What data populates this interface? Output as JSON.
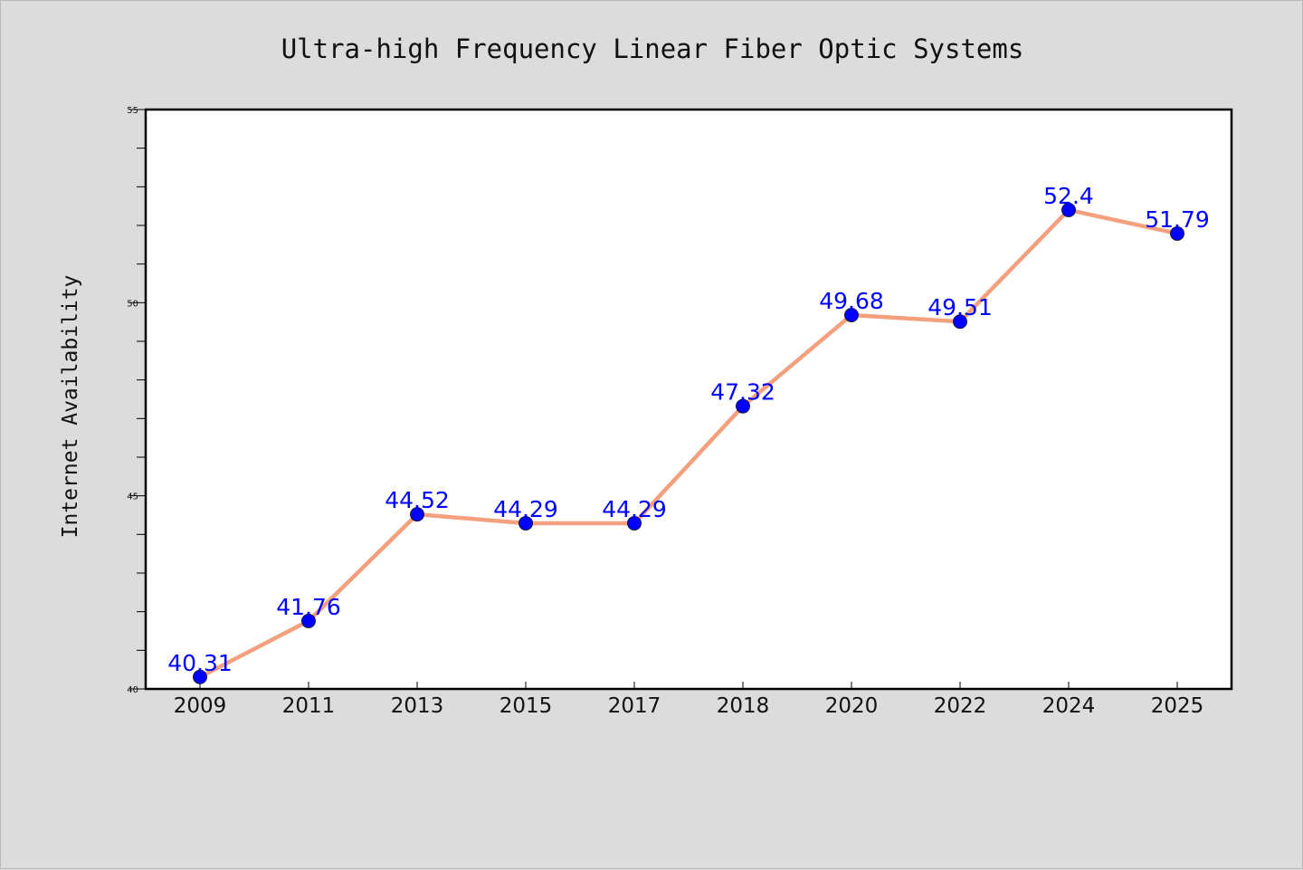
{
  "chart_data": {
    "type": "line",
    "title": "Ultra-high Frequency Linear Fiber Optic Systems",
    "xlabel": "",
    "ylabel": "Internet Availability",
    "categories": [
      "2009",
      "2011",
      "2013",
      "2015",
      "2017",
      "2018",
      "2020",
      "2022",
      "2024",
      "2025"
    ],
    "series": [
      {
        "values": [
          40.31,
          41.76,
          44.52,
          44.29,
          44.29,
          47.32,
          49.68,
          49.51,
          52.4,
          51.79
        ],
        "labels": [
          "40.31",
          "41.76",
          "44.52",
          "44.29",
          "44.29",
          "47.32",
          "49.68",
          "49.51",
          "52.4",
          "51.79"
        ]
      }
    ],
    "ylim": [
      40,
      55
    ],
    "yticks": [
      "40",
      "45",
      "50",
      "55"
    ],
    "grid": false,
    "legend": "none",
    "colors": {
      "background": "#dcdcdc",
      "plot_background": "#ffffff",
      "line": "#f4a07e",
      "marker": "#0000ff",
      "data_label": "#0000ff",
      "axis": "#000000"
    }
  }
}
